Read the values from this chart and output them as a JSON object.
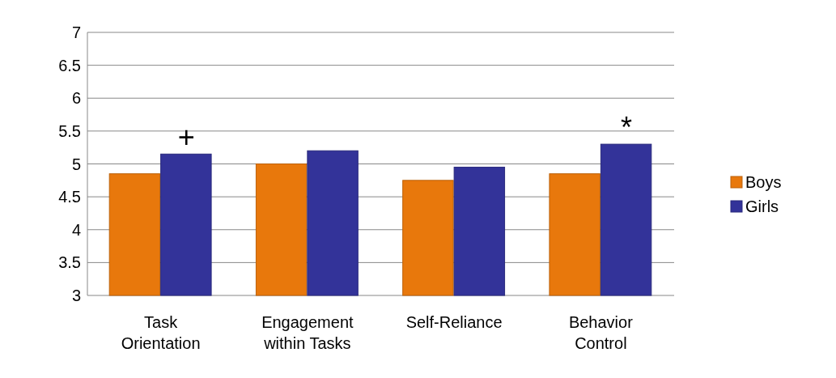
{
  "chart_data": {
    "type": "bar",
    "categories": [
      "Task Orientation",
      "Engagement within Tasks",
      "Self-Reliance",
      "Behavior Control"
    ],
    "series": [
      {
        "name": "Boys",
        "color": "#e8780c",
        "values": [
          4.85,
          5.0,
          4.75,
          4.85
        ]
      },
      {
        "name": "Girls",
        "color": "#333399",
        "values": [
          5.15,
          5.2,
          4.95,
          5.3
        ]
      }
    ],
    "ylim": [
      3,
      7
    ],
    "yticks": [
      3,
      3.5,
      4,
      4.5,
      5,
      5.5,
      6,
      6.5,
      7
    ],
    "grid": "y",
    "legend": "right",
    "annotations": [
      {
        "text": "+",
        "x": "Task Orientation",
        "y": 5.15
      },
      {
        "text": "*",
        "x": "Behavior Control",
        "y": 5.3
      }
    ]
  }
}
